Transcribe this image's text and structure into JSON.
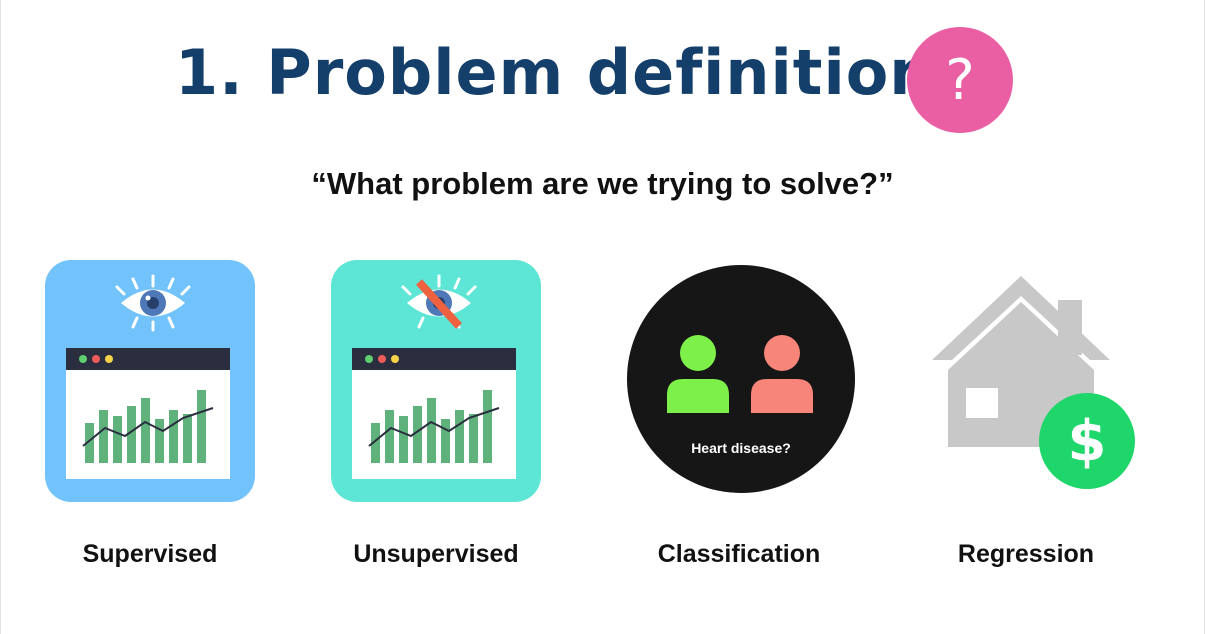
{
  "title": "1. Problem definition",
  "question_badge": "?",
  "subtitle": "“What problem are we trying to solve?”",
  "cards": [
    {
      "label": "Supervised",
      "icon": "eye-icon",
      "color": "#72c3fb"
    },
    {
      "label": "Unsupervised",
      "icon": "eye-crossed-icon",
      "color": "#5de5d6"
    },
    {
      "label": "Classification",
      "icon": "two-people-icon",
      "color": "#161616",
      "caption": "Heart disease?"
    },
    {
      "label": "Regression",
      "icon": "house-dollar-icon",
      "color": "#c8c8c8",
      "badge": "$"
    }
  ],
  "colors": {
    "title": "#143f6b",
    "question_badge": "#ea5fa4",
    "bars": "#5fb27c",
    "person_green": "#7ef04a",
    "person_red": "#f7857a",
    "dollar_badge": "#1fd66a"
  }
}
